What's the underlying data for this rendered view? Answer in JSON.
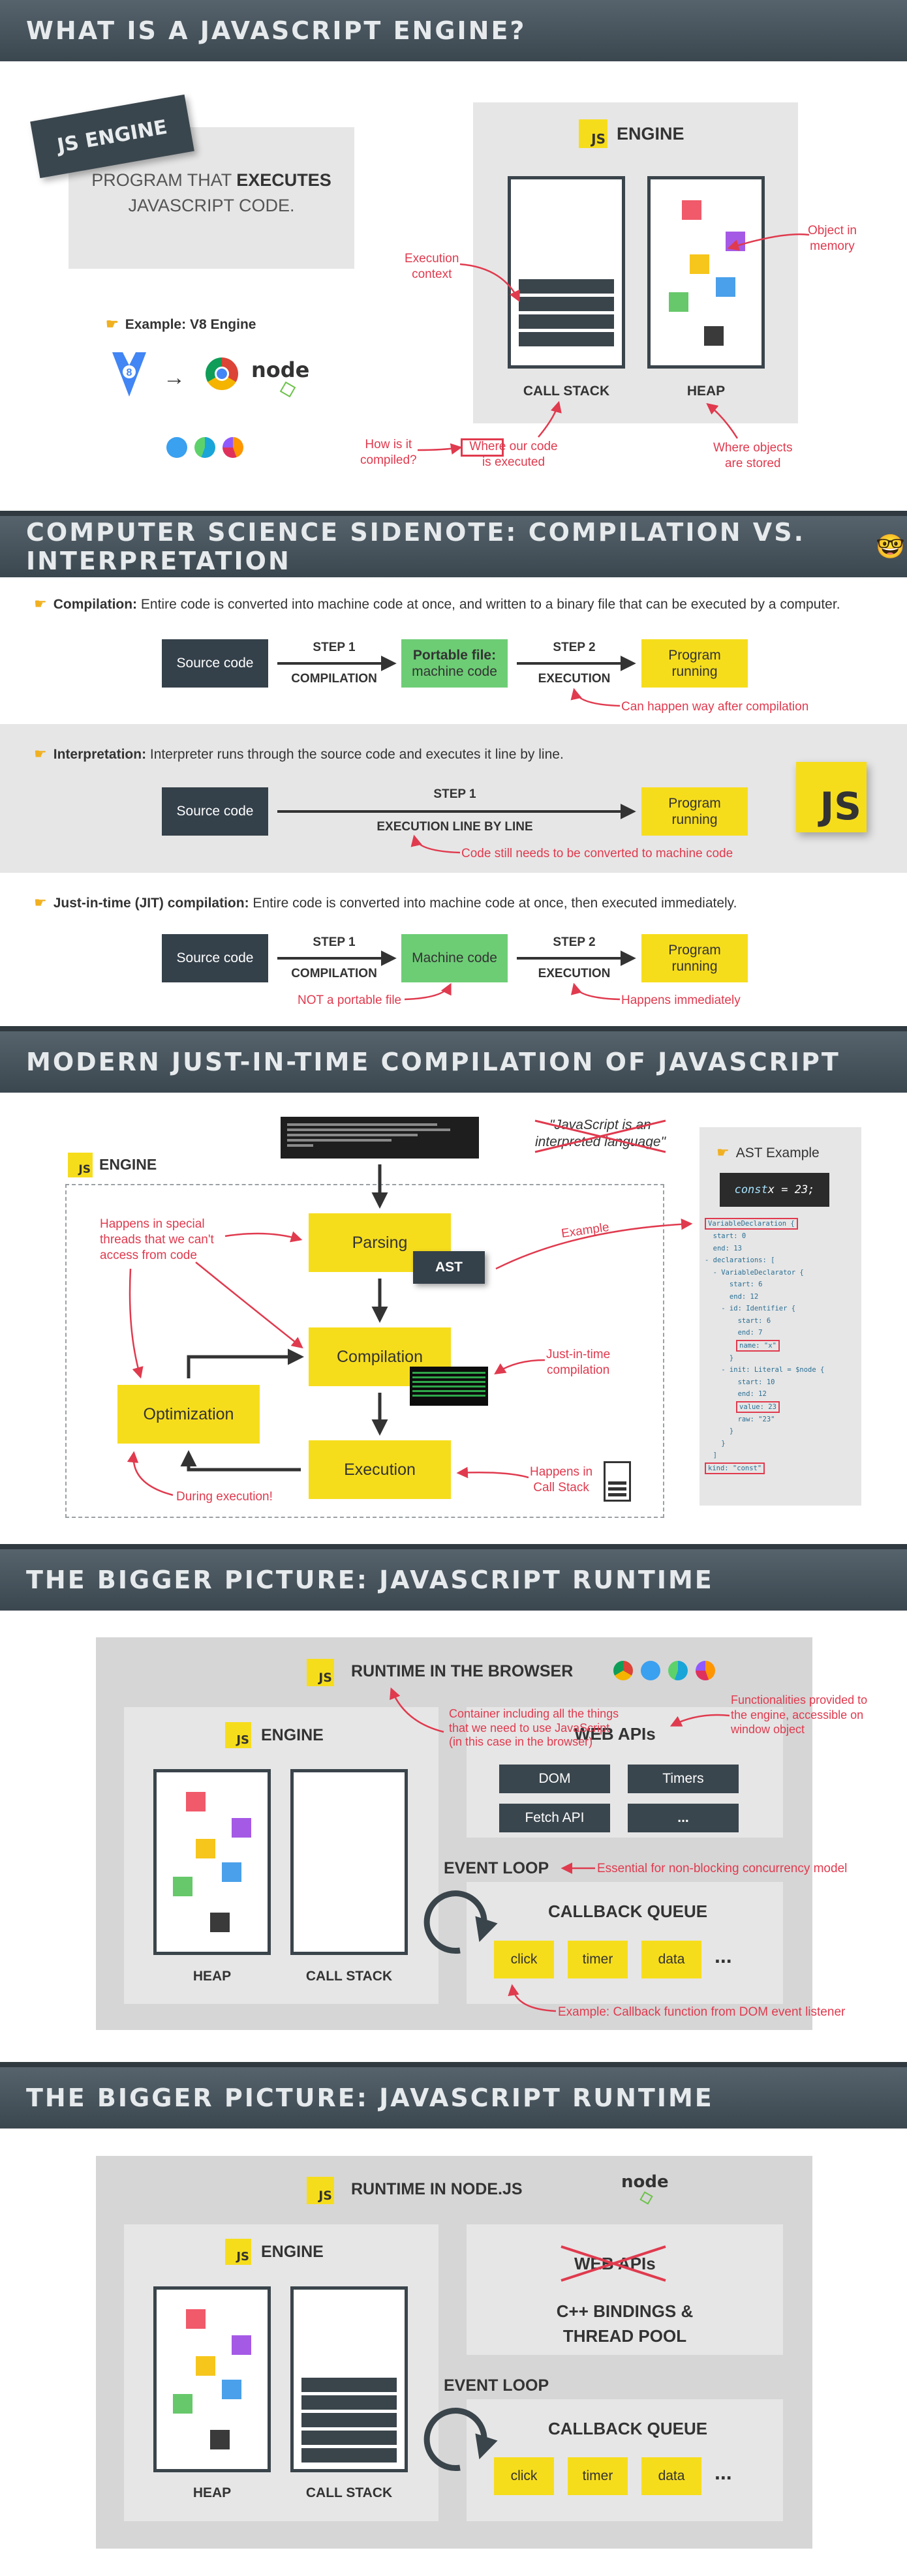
{
  "s1": {
    "title": "What is a JavaScript Engine?",
    "tag": "JS ENGINE",
    "program_pre": "PROGRAM THAT ",
    "program_bold": "EXECUTES",
    "program_post": "JAVASCRIPT CODE.",
    "example": "Example: V8 Engine",
    "v8": "8",
    "node": "node",
    "engine_badge": "JS",
    "engine_label": "ENGINE",
    "call_stack": "CALL STACK",
    "heap": "HEAP",
    "exec_context": "Execution\ncontext",
    "obj_memory": "Object in\nmemory",
    "how_compiled": "How is it\ncompiled?",
    "where_executed": "Where our code\nis executed",
    "where_stored": "Where objects\nare stored"
  },
  "s2": {
    "title": "Computer science sidenote: Compilation vs. Interpretation",
    "emoji": "🤓",
    "compilation_bold": "Compilation:",
    "compilation_text": " Entire code is converted into machine code at once, and written to a binary file that can be executed by a computer.",
    "source_code": "Source code",
    "step1": "STEP 1",
    "step2": "STEP 2",
    "compilation_lbl": "COMPILATION",
    "execution_lbl": "EXECUTION",
    "portable_bold": "Portable file:",
    "portable_sub": "machine code",
    "program_running": "Program\nrunning",
    "way_after": "Can happen way after compilation",
    "interp_bold": "Interpretation:",
    "interp_text": " Interpreter runs through the source code and executes it line by line.",
    "exec_line": "EXECUTION LINE BY LINE",
    "still_converted": "Code still needs to be converted to machine code",
    "js_badge": "JS",
    "jit_bold": "Just-in-time (JIT) compilation:",
    "jit_text": " Entire code is converted into machine code at once, then executed immediately.",
    "machine_code": "Machine code",
    "not_portable": "NOT a portable file",
    "immediately": "Happens immediately"
  },
  "s3": {
    "title": "Modern just-in-time compilation of JavaScript",
    "quote": "\"JavaScript is an\ninterpreted language\"",
    "engine_badge": "JS",
    "engine_label": "ENGINE",
    "parsing": "Parsing",
    "ast": "AST",
    "compilation": "Compilation",
    "execution": "Execution",
    "optimization": "Optimization",
    "special_threads": "Happens in special\nthreads that we can't\naccess from code",
    "during": "During execution!",
    "example": "Example",
    "jit": "Just-in-time\ncompilation",
    "callstack": "Happens in\nCall Stack",
    "ast_example": "AST Example",
    "const_kw": "const",
    "const_rest": " x = 23;",
    "ast_lines": [
      "VariableDeclaration {",
      "  start: 0",
      "  end: 13",
      "- declarations: [",
      "  - VariableDeclarator {",
      "      start: 6",
      "      end: 12",
      "    - id: Identifier {",
      "        start: 6",
      "        end: 7",
      "        name: \"x\"",
      "      }",
      "    - init: Literal = $node {",
      "        start: 10",
      "        end: 12",
      "        value: 23",
      "        raw: \"23\"",
      "      }",
      "    }",
      "  ]",
      "kind: \"const\""
    ]
  },
  "s4": {
    "title": "The bigger picture: JavaScript Runtime",
    "runtime_badge": "JS",
    "runtime_title": "RUNTIME IN THE BROWSER",
    "engine_badge": "JS",
    "engine_label": "ENGINE",
    "heap": "HEAP",
    "call_stack": "CALL STACK",
    "container_note": "Container including all the things\nthat we need to use JavaScript\n(in this case in the browser)",
    "web_apis": "WEB APIs",
    "dom": "DOM",
    "timers": "Timers",
    "fetch": "Fetch API",
    "dots": "...",
    "func_note": "Functionalities provided to\nthe engine, accessible on\nwindow object",
    "event_loop": "EVENT LOOP",
    "essential": "Essential for non-blocking concurrency model",
    "callback_queue": "CALLBACK QUEUE",
    "click": "click",
    "timer": "timer",
    "data": "data",
    "example_cb": "Example: Callback function from DOM event listener"
  },
  "s5": {
    "title": "The bigger picture: JavaScript Runtime",
    "runtime_badge": "JS",
    "runtime_title": "RUNTIME IN NODE.JS",
    "node": "node",
    "engine_badge": "JS",
    "engine_label": "ENGINE",
    "heap": "HEAP",
    "call_stack": "CALL STACK",
    "web_apis": "WEB APIs",
    "bindings": "C++ BINDINGS &\nTHREAD POOL",
    "event_loop": "EVENT LOOP",
    "callback_queue": "CALLBACK QUEUE",
    "click": "click",
    "timer": "timer",
    "data": "data",
    "dots": "..."
  },
  "colors": {
    "red_square": "#f05a6a",
    "purple_square": "#a55ae6",
    "yellow_square": "#f6c61c",
    "blue_square": "#4aa0ea",
    "green_square": "#66c86a",
    "dark_square": "#3a3a3a",
    "accent_red": "#e03a4e",
    "js_yellow": "#f6dd1c"
  }
}
